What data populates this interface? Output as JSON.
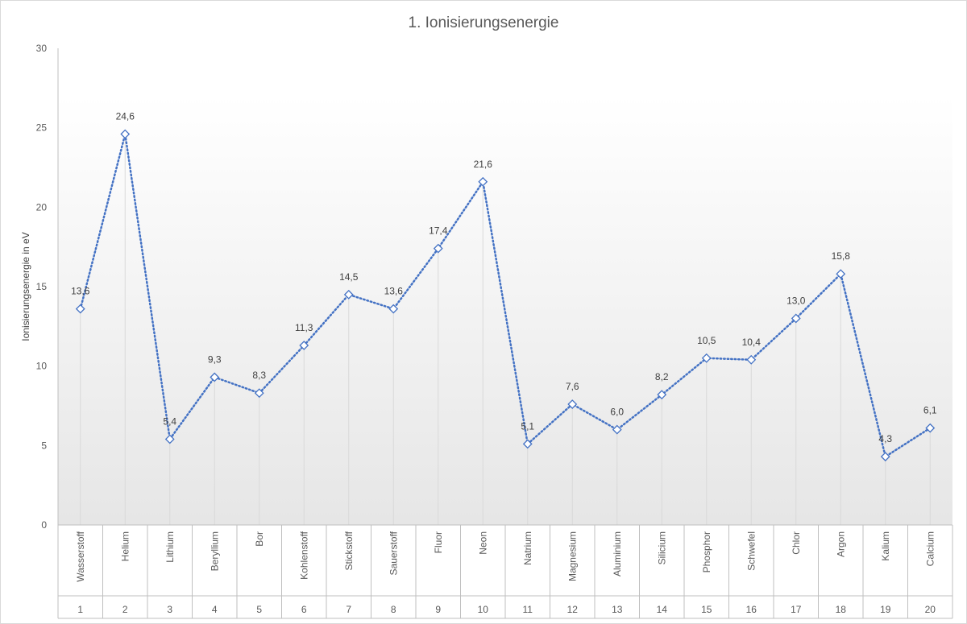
{
  "chart_data": {
    "type": "line",
    "title": "1. Ionisierungsenergie",
    "ylabel": "Ionisierungsenergie in eV",
    "xlabel": "",
    "ylim": [
      0,
      30
    ],
    "yticks": [
      "0",
      "5",
      "10",
      "15",
      "20",
      "25",
      "30"
    ],
    "grid": false,
    "drop_lines": true,
    "legend": "none",
    "marker": "diamond-open",
    "line_style": "dotted",
    "colors": {
      "series": "#4472C4",
      "axis": "#BFBFBF",
      "text": "#595959",
      "drop_line": "#D9D9D9",
      "plot_bg_top": "#FFFFFF",
      "plot_bg_bottom": "#E6E6E6"
    },
    "categories": [
      {
        "name": "Wasserstoff",
        "number": "1"
      },
      {
        "name": "Helium",
        "number": "2"
      },
      {
        "name": "Lithium",
        "number": "3"
      },
      {
        "name": "Beryllium",
        "number": "4"
      },
      {
        "name": "Bor",
        "number": "5"
      },
      {
        "name": "Kohlenstoff",
        "number": "6"
      },
      {
        "name": "Stickstoff",
        "number": "7"
      },
      {
        "name": "Sauerstoff",
        "number": "8"
      },
      {
        "name": "Fluor",
        "number": "9"
      },
      {
        "name": "Neon",
        "number": "10"
      },
      {
        "name": "Natrium",
        "number": "11"
      },
      {
        "name": "Magnesium",
        "number": "12"
      },
      {
        "name": "Aluminium",
        "number": "13"
      },
      {
        "name": "Silicium",
        "number": "14"
      },
      {
        "name": "Phosphor",
        "number": "15"
      },
      {
        "name": "Schwefel",
        "number": "16"
      },
      {
        "name": "Chlor",
        "number": "17"
      },
      {
        "name": "Argon",
        "number": "18"
      },
      {
        "name": "Kalium",
        "number": "19"
      },
      {
        "name": "Calcium",
        "number": "20"
      }
    ],
    "values": [
      13.6,
      24.6,
      5.4,
      9.3,
      8.3,
      11.3,
      14.5,
      13.6,
      17.4,
      21.6,
      5.1,
      7.6,
      6.0,
      8.2,
      10.5,
      10.4,
      13.0,
      15.8,
      4.3,
      6.1
    ],
    "labels": [
      "13,6",
      "24,6",
      "5,4",
      "9,3",
      "8,3",
      "11,3",
      "14,5",
      "13,6",
      "17,4",
      "21,6",
      "5,1",
      "7,6",
      "6,0",
      "8,2",
      "10,5",
      "10,4",
      "13,0",
      "15,8",
      "4,3",
      "6,1"
    ]
  }
}
